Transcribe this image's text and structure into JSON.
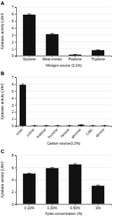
{
  "chart_data": [
    {
      "type": "bar",
      "title": "A",
      "xlabel": "Nitrogen source (0.1%)",
      "ylabel": "Xylanase activity (U/ml)",
      "categories": [
        "Soytone",
        "Meat extract",
        "Peptone",
        "Tryptone"
      ],
      "values": [
        5.9,
        3.1,
        0.15,
        0.8
      ],
      "errors": [
        0.12,
        0.1,
        0.05,
        0.06
      ],
      "color": "#111111",
      "ylim": [
        0,
        7
      ],
      "yticks": [
        0,
        1,
        2,
        3,
        4,
        5,
        6,
        7
      ],
      "grid": true
    },
    {
      "type": "bar",
      "title": "B",
      "xlabel": "Carbon source(0.3%)",
      "ylabel": "Xylanase activity (U/ml)",
      "categories": [
        "xylan",
        "xylose",
        "maltose",
        "fructose",
        "lactose",
        "glucose",
        "CMC",
        "dextrin"
      ],
      "values": [
        5.9,
        0.05,
        0.05,
        0.05,
        0.05,
        0.15,
        0.05,
        0.05
      ],
      "errors": [
        0.12,
        0.02,
        0.02,
        0.02,
        0.02,
        0.04,
        0.02,
        0.02
      ],
      "color": "#111111",
      "ylim": [
        0,
        7
      ],
      "yticks": [
        0,
        1,
        2,
        3,
        4,
        5,
        6,
        7
      ],
      "grid": true
    },
    {
      "type": "bar",
      "title": "C",
      "xlabel": "Xylan concentration (%)",
      "ylabel": "Xylanase activity (U/ml)",
      "categories": [
        "0.10%",
        "0.30%",
        "0.50%",
        "1%"
      ],
      "values": [
        5.0,
        5.9,
        6.5,
        3.0
      ],
      "errors": [
        0.1,
        0.12,
        0.15,
        0.1
      ],
      "color": "#111111",
      "ylim": [
        0,
        8
      ],
      "yticks": [
        0,
        2,
        4,
        6,
        8
      ],
      "grid": true
    }
  ]
}
